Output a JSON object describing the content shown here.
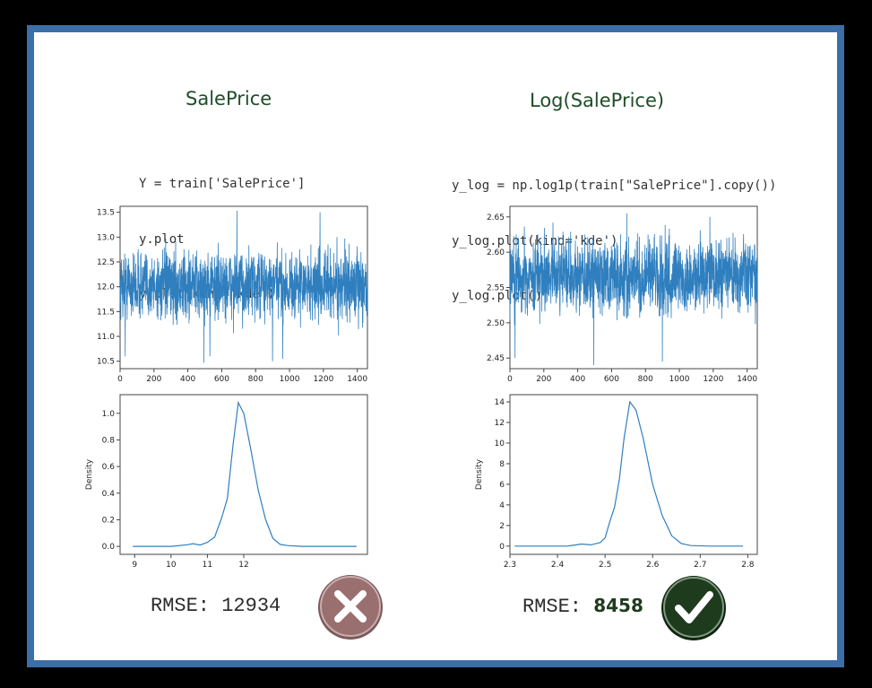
{
  "left": {
    "heading": "SalePrice",
    "code": [
      "Y = train['SalePrice']",
      "y.plot",
      "y.plot(kind='kde')"
    ],
    "rmse_label": "RMSE:",
    "rmse_value": "12934",
    "verdict_icon": "x-mark-icon",
    "verdict_color": "#9a6f70"
  },
  "right": {
    "heading": "Log(SalePrice)",
    "code": [
      "y_log = np.log1p(train[\"SalePrice\"].copy())",
      "y_log.plot(kind='kde')",
      "y_log.plot()"
    ],
    "rmse_label": "RMSE:",
    "rmse_value": "8458",
    "verdict_icon": "check-mark-icon",
    "verdict_color": "#1e3b1e"
  },
  "colors": {
    "line": "#2f7fbf",
    "frame": "#3c6ea8"
  },
  "chart_data": [
    {
      "type": "line",
      "title": "",
      "xlabel": "",
      "ylabel": "",
      "xlim": [
        0,
        1460
      ],
      "ylim": [
        10.35,
        13.62
      ],
      "xticks": [
        "0",
        "200",
        "400",
        "600",
        "800",
        "1000",
        "1200",
        "1400"
      ],
      "yticks": [
        "10.5",
        "11.0",
        "11.5",
        "12.0",
        "12.5",
        "13.0",
        "13.5"
      ],
      "series": [
        {
          "mean": 12.02,
          "std": 0.4,
          "n": 1460,
          "notable_points": [
            [
              30,
              10.6
            ],
            [
              495,
              10.47
            ],
            [
              530,
              10.6
            ],
            [
              690,
              13.53
            ],
            [
              900,
              10.5
            ],
            [
              1180,
              13.5
            ],
            [
              1280,
              13.0
            ],
            [
              960,
              10.55
            ]
          ]
        }
      ]
    },
    {
      "type": "line",
      "title": "",
      "xlabel": "",
      "ylabel": "",
      "xlim": [
        0,
        1460
      ],
      "ylim": [
        2.435,
        2.665
      ],
      "xticks": [
        "0",
        "200",
        "400",
        "600",
        "800",
        "1000",
        "1200",
        "1400"
      ],
      "yticks": [
        "2.45",
        "2.50",
        "2.55",
        "2.60",
        "2.65"
      ],
      "series": [
        {
          "mean": 2.566,
          "std": 0.031,
          "n": 1460,
          "notable_points": [
            [
              30,
              2.45
            ],
            [
              495,
              2.44
            ],
            [
              690,
              2.655
            ],
            [
              1180,
              2.65
            ],
            [
              900,
              2.445
            ],
            [
              1280,
              2.62
            ]
          ]
        }
      ]
    },
    {
      "type": "line",
      "title": "",
      "xlabel": "",
      "ylabel": "Density",
      "xlim": [
        8.6,
        15.4
      ],
      "ylim": [
        -0.06,
        1.14
      ],
      "xticks": [
        "9",
        "10",
        "11",
        "12"
      ],
      "yticks": [
        "0.0",
        "0.2",
        "0.4",
        "0.6",
        "0.8",
        "1.0"
      ],
      "series": [
        {
          "x": [
            8.95,
            10.0,
            10.45,
            10.6,
            10.8,
            11.0,
            11.2,
            11.4,
            11.55,
            11.7,
            11.85,
            12.0,
            12.2,
            12.4,
            12.6,
            12.8,
            13.0,
            13.2,
            13.6,
            14.2,
            15.1
          ],
          "y": [
            0.0,
            0.0,
            0.012,
            0.02,
            0.01,
            0.03,
            0.07,
            0.22,
            0.36,
            0.75,
            1.08,
            1.0,
            0.72,
            0.42,
            0.2,
            0.06,
            0.015,
            0.006,
            0.0,
            0.0,
            0.0
          ]
        }
      ]
    },
    {
      "type": "line",
      "title": "",
      "xlabel": "",
      "ylabel": "Density",
      "xlim": [
        2.3,
        2.82
      ],
      "ylim": [
        -0.8,
        14.7
      ],
      "xticks": [
        "2.3",
        "2.4",
        "2.5",
        "2.6",
        "2.7",
        "2.8"
      ],
      "yticks": [
        "0",
        "2",
        "4",
        "6",
        "8",
        "10",
        "12",
        "14"
      ],
      "series": [
        {
          "x": [
            2.31,
            2.42,
            2.44,
            2.45,
            2.47,
            2.49,
            2.5,
            2.51,
            2.52,
            2.53,
            2.54,
            2.552,
            2.565,
            2.58,
            2.6,
            2.62,
            2.64,
            2.66,
            2.68,
            2.72,
            2.79
          ],
          "y": [
            0.0,
            0.0,
            0.12,
            0.2,
            0.12,
            0.35,
            0.8,
            2.4,
            3.8,
            6.5,
            10.5,
            14.0,
            13.2,
            10.5,
            6.0,
            3.0,
            1.0,
            0.25,
            0.05,
            0.0,
            0.0
          ]
        }
      ]
    }
  ]
}
